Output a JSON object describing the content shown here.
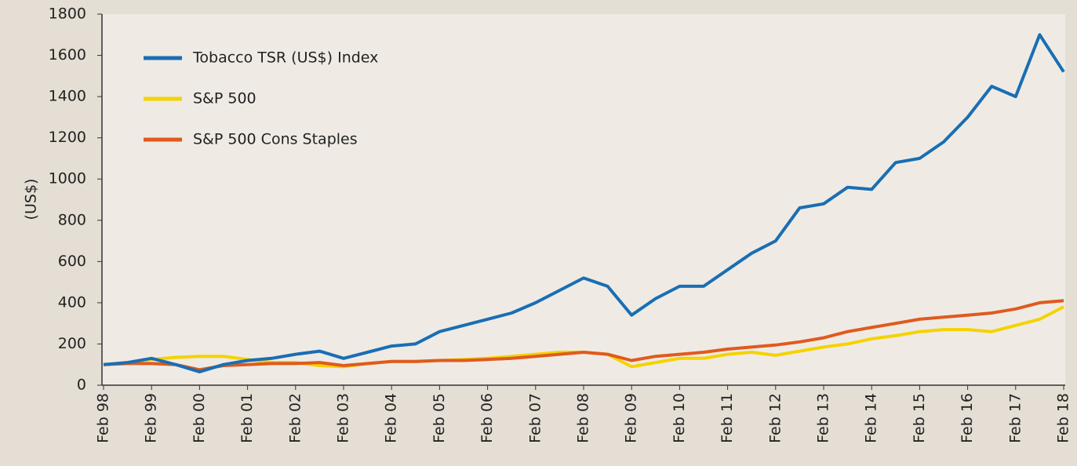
{
  "chart_data": {
    "type": "line",
    "y_label": "(US$)",
    "categories": [
      "Feb 98",
      null,
      "Feb 99",
      null,
      "Feb 00",
      null,
      "Feb 01",
      null,
      "Feb 02",
      null,
      "Feb 03",
      null,
      "Feb 04",
      null,
      "Feb 05",
      null,
      "Feb 06",
      null,
      "Feb 07",
      null,
      "Feb 08",
      null,
      "Feb 09",
      null,
      "Feb 10",
      null,
      "Feb 11",
      null,
      "Feb 12",
      null,
      "Feb 13",
      null,
      "Feb 14",
      null,
      "Feb 15",
      null,
      "Feb 16",
      null,
      "Feb 17",
      null,
      "Feb 18"
    ],
    "series": [
      {
        "name": "Tobacco TSR (US$) Index",
        "color": "#1a6eb4",
        "values": [
          100,
          110,
          130,
          100,
          65,
          100,
          120,
          130,
          150,
          165,
          130,
          160,
          190,
          200,
          260,
          290,
          320,
          350,
          400,
          460,
          520,
          480,
          340,
          420,
          480,
          480,
          560,
          640,
          700,
          860,
          880,
          960,
          950,
          1080,
          1100,
          1180,
          1300,
          1450,
          1400,
          1700,
          1520
        ]
      },
      {
        "name": "S&P 500",
        "color": "#f5d200",
        "values": [
          100,
          110,
          125,
          135,
          140,
          140,
          125,
          110,
          110,
          95,
          90,
          105,
          115,
          115,
          120,
          125,
          130,
          140,
          150,
          160,
          160,
          150,
          90,
          110,
          130,
          130,
          150,
          160,
          145,
          165,
          185,
          200,
          225,
          240,
          260,
          270,
          270,
          260,
          290,
          320,
          380
        ]
      },
      {
        "name": "S&P 500 Cons Staples",
        "color": "#e05a1e",
        "values": [
          100,
          105,
          105,
          100,
          75,
          95,
          100,
          105,
          105,
          110,
          95,
          105,
          115,
          115,
          120,
          120,
          125,
          130,
          140,
          150,
          160,
          150,
          120,
          140,
          150,
          160,
          175,
          185,
          195,
          210,
          230,
          260,
          280,
          300,
          320,
          330,
          340,
          350,
          370,
          400,
          410
        ]
      }
    ],
    "ylim": [
      0,
      1800
    ],
    "yticks": [
      0,
      200,
      400,
      600,
      800,
      1000,
      1200,
      1400,
      1600,
      1800
    ],
    "grid": false
  }
}
